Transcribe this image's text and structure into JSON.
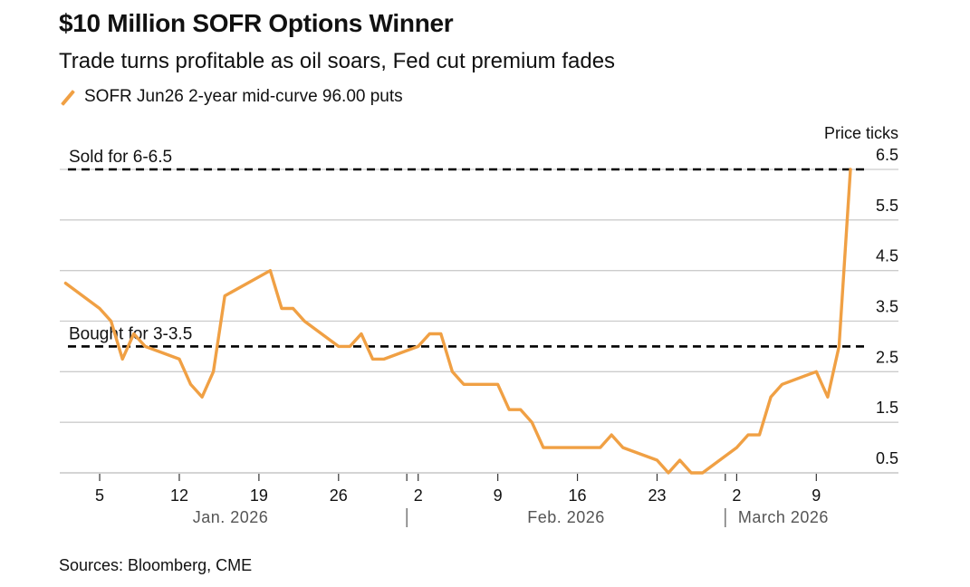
{
  "title": "$10 Million SOFR Options Winner",
  "subtitle": "Trade turns profitable as oil soars, Fed cut premium fades",
  "source": "Sources: Bloomberg, CME",
  "colors": {
    "line": "#f0a044",
    "grid": "#cccccc",
    "reference": "#000000",
    "axis_text": "#111111",
    "month_text": "#555555"
  },
  "chart_data": {
    "type": "line",
    "title": "$10 Million SOFR Options Winner",
    "subtitle": "Trade turns profitable as oil soars, Fed cut premium fades",
    "xlabel": "",
    "ylabel": "Price ticks",
    "ylim": [
      0.5,
      6.5
    ],
    "yticks": [
      "6.5",
      "5.5",
      "4.5",
      "3.5",
      "2.5",
      "1.5",
      "0.5"
    ],
    "ytick_values": [
      6.5,
      5.5,
      4.5,
      3.5,
      2.5,
      1.5,
      0.5
    ],
    "y_axis_side": "right",
    "grid": true,
    "legend_position": "top-left",
    "xlim": [
      "2026-01-01",
      "2026-03-15"
    ],
    "xticks": [
      {
        "date": "2026-01-05",
        "label": "5"
      },
      {
        "date": "2026-01-12",
        "label": "12"
      },
      {
        "date": "2026-01-19",
        "label": "19"
      },
      {
        "date": "2026-01-26",
        "label": "26"
      },
      {
        "date": "2026-02-02",
        "label": "2"
      },
      {
        "date": "2026-02-09",
        "label": "9"
      },
      {
        "date": "2026-02-16",
        "label": "16"
      },
      {
        "date": "2026-02-23",
        "label": "23"
      },
      {
        "date": "2026-03-02",
        "label": "2"
      },
      {
        "date": "2026-03-09",
        "label": "9"
      }
    ],
    "months": [
      {
        "label": "Jan. 2026",
        "start": "2026-01-01",
        "end": "2026-02-01"
      },
      {
        "label": "Feb. 2026",
        "start": "2026-02-01",
        "end": "2026-03-01"
      },
      {
        "label": "March 2026",
        "start": "2026-03-01",
        "end": "2026-03-15"
      }
    ],
    "reference_lines": [
      {
        "label": "Sold for 6-6.5",
        "value": 6.5
      },
      {
        "label": "Bought for 3-3.5",
        "value": 3.0
      }
    ],
    "series": [
      {
        "name": "SOFR Jun26 2-year mid-curve 96.00 puts",
        "x": [
          "2026-01-02",
          "2026-01-05",
          "2026-01-06",
          "2026-01-07",
          "2026-01-08",
          "2026-01-09",
          "2026-01-12",
          "2026-01-13",
          "2026-01-14",
          "2026-01-15",
          "2026-01-16",
          "2026-01-20",
          "2026-01-21",
          "2026-01-22",
          "2026-01-23",
          "2026-01-26",
          "2026-01-27",
          "2026-01-28",
          "2026-01-29",
          "2026-01-30",
          "2026-02-02",
          "2026-02-03",
          "2026-02-04",
          "2026-02-05",
          "2026-02-06",
          "2026-02-09",
          "2026-02-10",
          "2026-02-11",
          "2026-02-12",
          "2026-02-13",
          "2026-02-17",
          "2026-02-18",
          "2026-02-19",
          "2026-02-20",
          "2026-02-23",
          "2026-02-24",
          "2026-02-25",
          "2026-02-26",
          "2026-02-27",
          "2026-03-02",
          "2026-03-03",
          "2026-03-04",
          "2026-03-05",
          "2026-03-06",
          "2026-03-09",
          "2026-03-10",
          "2026-03-11",
          "2026-03-12"
        ],
        "values": [
          4.25,
          3.75,
          3.5,
          2.75,
          3.25,
          3.0,
          2.75,
          2.25,
          2.0,
          2.5,
          4.0,
          4.5,
          3.75,
          3.75,
          3.5,
          3.0,
          3.0,
          3.25,
          2.75,
          2.75,
          3.0,
          3.25,
          3.25,
          2.5,
          2.25,
          2.25,
          1.75,
          1.75,
          1.5,
          1.0,
          1.0,
          1.0,
          1.25,
          1.0,
          0.75,
          0.5,
          0.75,
          0.5,
          0.5,
          1.0,
          1.25,
          1.25,
          2.0,
          2.25,
          2.5,
          2.0,
          3.0,
          6.5
        ]
      }
    ]
  }
}
